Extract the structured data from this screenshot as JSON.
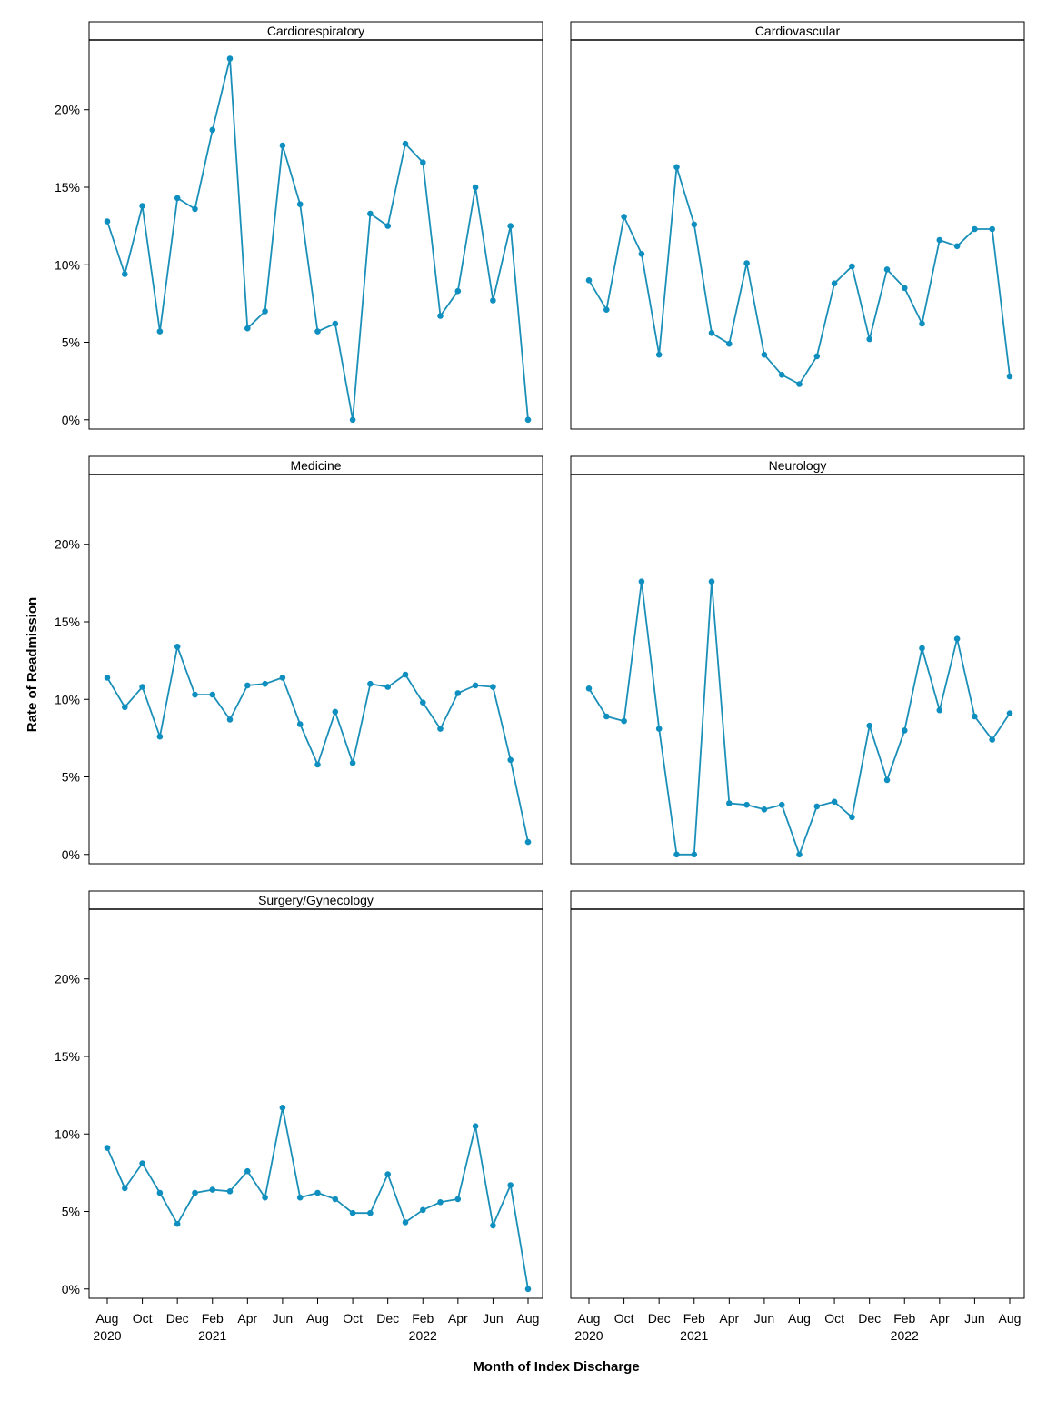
{
  "chart_data": {
    "type": "line",
    "ylabel": "Rate of Readmission",
    "xlabel": "Month of Index Discharge",
    "ylim": [
      -0.6,
      24.5
    ],
    "yticks": [
      0,
      5,
      10,
      15,
      20
    ],
    "ytick_labels": [
      "0%",
      "5%",
      "10%",
      "15%",
      "20%"
    ],
    "x": [
      "2020-08",
      "2020-09",
      "2020-10",
      "2020-11",
      "2020-12",
      "2021-01",
      "2021-02",
      "2021-03",
      "2021-04",
      "2021-05",
      "2021-06",
      "2021-07",
      "2021-08",
      "2021-09",
      "2021-10",
      "2021-11",
      "2021-12",
      "2022-01",
      "2022-02",
      "2022-03",
      "2022-04",
      "2022-05",
      "2022-06",
      "2022-07",
      "2022-08"
    ],
    "xticks": [
      {
        "month": "Aug",
        "year": "2020"
      },
      {
        "month": "Oct",
        "year": ""
      },
      {
        "month": "Dec",
        "year": ""
      },
      {
        "month": "Feb",
        "year": "2021"
      },
      {
        "month": "Apr",
        "year": ""
      },
      {
        "month": "Jun",
        "year": ""
      },
      {
        "month": "Aug",
        "year": ""
      },
      {
        "month": "Oct",
        "year": ""
      },
      {
        "month": "Dec",
        "year": ""
      },
      {
        "month": "Feb",
        "year": "2022"
      },
      {
        "month": "Apr",
        "year": ""
      },
      {
        "month": "Jun",
        "year": ""
      },
      {
        "month": "Aug",
        "year": ""
      }
    ],
    "line_color": "#1a8fb8",
    "point_color": "#0e8fbf",
    "grid": false,
    "panels": [
      {
        "name": "Cardiorespiratory",
        "values": [
          12.8,
          9.4,
          13.8,
          5.7,
          14.3,
          13.6,
          18.7,
          23.3,
          5.9,
          7.0,
          17.7,
          13.9,
          5.7,
          6.2,
          0.0,
          13.3,
          12.5,
          17.8,
          16.6,
          6.7,
          8.3,
          15.0,
          7.7,
          12.5,
          0.0
        ]
      },
      {
        "name": "Cardiovascular",
        "values": [
          9.0,
          7.1,
          13.1,
          10.7,
          4.2,
          16.3,
          12.6,
          5.6,
          4.9,
          10.1,
          4.2,
          2.9,
          2.3,
          4.1,
          8.8,
          9.9,
          5.2,
          9.7,
          8.5,
          6.2,
          11.6,
          11.2,
          12.3,
          12.3,
          2.8
        ]
      },
      {
        "name": "Medicine",
        "values": [
          11.4,
          9.5,
          10.8,
          7.6,
          13.4,
          10.3,
          10.3,
          8.7,
          10.9,
          11.0,
          11.4,
          8.4,
          5.8,
          9.2,
          5.9,
          11.0,
          10.8,
          11.6,
          9.8,
          8.1,
          10.4,
          10.9,
          10.8,
          6.1,
          0.8
        ]
      },
      {
        "name": "Neurology",
        "values": [
          10.7,
          8.9,
          8.6,
          17.6,
          8.1,
          0.0,
          0.0,
          17.6,
          3.3,
          3.2,
          2.9,
          3.2,
          0.0,
          3.1,
          3.4,
          2.4,
          8.3,
          4.8,
          8.0,
          13.3,
          9.3,
          13.9,
          8.9,
          7.4,
          9.1
        ]
      },
      {
        "name": "Surgery/Gynecology",
        "values": [
          9.1,
          6.5,
          8.1,
          6.2,
          4.2,
          6.2,
          6.4,
          6.3,
          7.6,
          5.9,
          11.7,
          5.9,
          6.2,
          5.8,
          4.9,
          4.9,
          7.4,
          4.3,
          5.1,
          5.6,
          5.8,
          10.5,
          4.1,
          6.7,
          0.0
        ]
      },
      {
        "name": "",
        "values": []
      }
    ]
  }
}
